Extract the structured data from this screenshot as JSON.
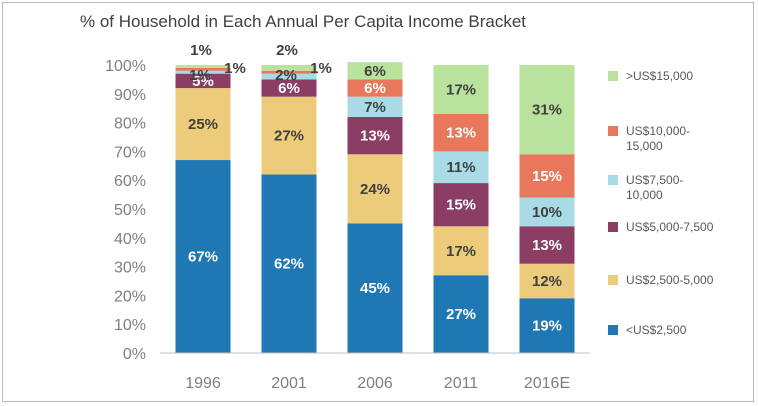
{
  "chart_data": {
    "type": "bar",
    "stacked": true,
    "title": "% of Household in Each Annual Per Capita Income Bracket",
    "categories": [
      "1996",
      "2001",
      "2006",
      "2011",
      "2016E"
    ],
    "ylim": [
      0,
      100
    ],
    "yticks": [
      "0%",
      "10%",
      "20%",
      "30%",
      "40%",
      "50%",
      "60%",
      "70%",
      "80%",
      "90%",
      "100%"
    ],
    "grid": false,
    "legend_position": "right",
    "series": [
      {
        "name": "<US$2,500",
        "color": "#1f77b4",
        "values": [
          67,
          62,
          45,
          27,
          19
        ],
        "labels": [
          "67%",
          "62%",
          "45%",
          "27%",
          "19%"
        ]
      },
      {
        "name": "US$2,500-5,000",
        "color": "#eccb7b",
        "values": [
          25,
          27,
          24,
          17,
          12
        ],
        "labels": [
          "25%",
          "27%",
          "24%",
          "17%",
          "12%"
        ]
      },
      {
        "name": "US$5,000-7,500",
        "color": "#8c3d63",
        "values": [
          5,
          6,
          13,
          15,
          13
        ],
        "labels": [
          "5%",
          "6%",
          "13%",
          "15%",
          "13%"
        ]
      },
      {
        "name": "US$7,500-\n10,000",
        "color": "#a8dbe6",
        "values": [
          1,
          2,
          7,
          11,
          10
        ],
        "labels": [
          "1%",
          "2%",
          "7%",
          "11%",
          "10%"
        ]
      },
      {
        "name": "US$10,000-\n15,000",
        "color": "#e8775b",
        "values": [
          1,
          1,
          6,
          13,
          15
        ],
        "labels": [
          "1%",
          "1%",
          "6%",
          "13%",
          "15%"
        ]
      },
      {
        "name": ">US$15,000",
        "color": "#b9e29c",
        "values": [
          1,
          2,
          6,
          17,
          31
        ],
        "labels": [
          "1%",
          "2%",
          "6%",
          "17%",
          "31%"
        ]
      }
    ]
  }
}
